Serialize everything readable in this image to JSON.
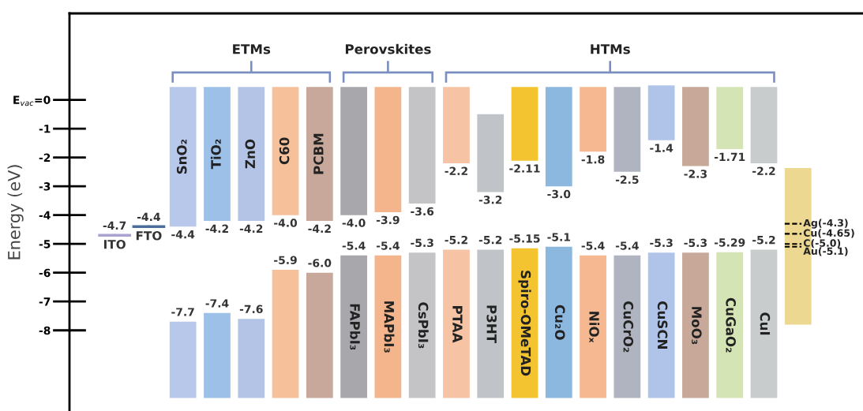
{
  "chart_data": {
    "type": "bar",
    "ylabel": "Energy (eV)",
    "categories": [
      "ITO",
      "FTO",
      "SnO₂",
      "TiO₂",
      "ZnO",
      "C60",
      "PCBM",
      "FAPbI₃",
      "MAPbI₃",
      "CsPbI₃",
      "PTAA",
      "P3HT",
      "Spiro-OMeTAD",
      "Cu₂O",
      "NiOₓ",
      "CuCrO₂",
      "CuSCN",
      "MoO₃",
      "CuGaO₂",
      "CuI",
      null
    ],
    "ylim": [
      -10.8,
      3.0
    ],
    "yticks": [
      {
        "value": 0,
        "label": "E$_{vac}$=0"
      },
      -1,
      -2,
      -3,
      -4,
      -5,
      -6,
      -7,
      -8
    ],
    "tick_labels": "y",
    "series": [
      {
        "type": "scatter",
        "colors": [
          "#a9a3d0",
          "#4a6d9a",
          null,
          null,
          null,
          null,
          null,
          null,
          null,
          null,
          null,
          null,
          null,
          null,
          null,
          null,
          null,
          null,
          null,
          null,
          null
        ],
        "values": [
          -4.7,
          -4.4,
          null,
          null,
          null,
          null,
          null,
          null,
          null,
          null,
          null,
          null,
          null,
          null,
          null,
          null,
          null,
          null,
          null,
          null,
          null
        ],
        "value_labels": [
          "-4.7",
          "-4.4",
          null,
          null,
          null,
          null,
          null,
          null,
          null,
          null,
          null,
          null,
          null,
          null,
          null,
          null,
          null,
          null,
          null,
          null,
          null
        ]
      },
      {
        "colors": [
          null,
          null,
          "#b8c8ea",
          "#9cc0e8",
          "#b4c4e6",
          "#f6c09a",
          "#c8a89a",
          "#a8a8ac",
          "#f4b48c",
          "#c4c4c6",
          "#f6c4a4",
          "#c0c4c8",
          "#f4c430",
          "#8cb8e0",
          "#f6b890",
          "#b0b4c0",
          "#b0c4ea",
          "#c8a898",
          "#d4e4b4",
          "#c8cccc",
          "#ecd890"
        ],
        "base": [
          null,
          null,
          -4.4,
          -4.2,
          -4.2,
          -4.0,
          -4.2,
          -4.0,
          -3.9,
          -3.6,
          -2.2,
          -3.2,
          -2.11,
          -3.0,
          -1.8,
          -2.5,
          -1.4,
          -2.3,
          -1.71,
          -2.2,
          -7.8
        ],
        "values": [
          null,
          null,
          4.85,
          4.65,
          4.65,
          4.45,
          4.65,
          4.45,
          4.35,
          4.05,
          2.65,
          2.7,
          2.56,
          3.45,
          2.25,
          2.95,
          1.9,
          2.75,
          2.16,
          2.65,
          5.43
        ]
      },
      {
        "colors": [
          null,
          null,
          "#b8c8ea",
          "#9cc0e8",
          "#b4c4e6",
          "#f6c09a",
          "#c8a89a",
          "#a8a8ac",
          "#f4b48c",
          "#c4c4c6",
          "#f6c4a4",
          "#c0c4c8",
          "#f4c430",
          "#8cb8e0",
          "#f6b890",
          "#b0b4c0",
          "#b0c4ea",
          "#c8a898",
          "#d4e4b4",
          "#c8cccc",
          null
        ],
        "base": [
          null,
          null,
          -7.7,
          -7.4,
          -7.6,
          -5.9,
          -6.0,
          -5.4,
          -5.4,
          -5.3,
          -5.2,
          -5.2,
          -5.15,
          -5.1,
          -5.4,
          -5.4,
          -5.3,
          -5.3,
          -5.29,
          -5.2,
          null
        ],
        "values": [
          null,
          null,
          -2.65,
          -2.95,
          -2.75,
          -4.45,
          -4.35,
          -4.95,
          -4.95,
          -5.05,
          -5.15,
          -5.15,
          -5.2,
          -5.25,
          -4.95,
          -4.95,
          -5.05,
          -5.05,
          -5.06,
          -5.15,
          null
        ]
      }
    ],
    "ref_lines": [
      {
        "axis": "y",
        "value": -4.3,
        "label": "Ag(-4.3)",
        "color": "#000000",
        "line_style": "dashed"
      },
      {
        "axis": "y",
        "value": -4.65,
        "label": "Cu(-4.65)",
        "color": "#000000",
        "line_style": "dashed"
      },
      {
        "axis": "y",
        "value": -5.0,
        "label": "C(-5.0)",
        "color": "#000000",
        "line_style": "dashed"
      },
      {
        "axis": "y",
        "value": -5.1,
        "label": "Au(-5.1)",
        "color": "#000000",
        "line_style": "dashed"
      }
    ],
    "annotations": [
      "ETMs",
      "Perovskites",
      "HTMs",
      {
        "text": "-4.4",
        "x": "SnO₂",
        "y": -4.4
      },
      {
        "text": "-4.2",
        "x": "TiO₂",
        "y": -4.2
      },
      {
        "text": "-4.2",
        "x": "ZnO",
        "y": -4.2
      },
      {
        "text": "-4.0",
        "x": "C60",
        "y": -4.0
      },
      {
        "text": "-4.2",
        "x": "PCBM",
        "y": -4.2
      },
      {
        "text": "-4.0",
        "x": "FAPbI₃",
        "y": -4.0
      },
      {
        "text": "-3.9",
        "x": "MAPbI₃",
        "y": -3.9
      },
      {
        "text": "-3.6",
        "x": "CsPbI₃",
        "y": -3.6
      },
      {
        "text": "-2.2",
        "x": "PTAA",
        "y": -2.2
      },
      {
        "text": "-3.2",
        "x": "P3HT",
        "y": -3.2
      },
      {
        "text": "-2.11",
        "x": "Spiro-OMeTAD",
        "y": -2.11
      },
      {
        "text": "-3.0",
        "x": "Cu₂O",
        "y": -3.0
      },
      {
        "text": "-1.8",
        "x": "NiOₓ",
        "y": -1.8
      },
      {
        "text": "-2.5",
        "x": "CuCrO₂",
        "y": -2.5
      },
      {
        "text": "-1.4",
        "x": "CuSCN",
        "y": -1.4
      },
      {
        "text": "-2.3",
        "x": "MoO₃",
        "y": -2.3
      },
      {
        "text": "-1.71",
        "x": "CuGaO₂",
        "y": -1.71
      },
      {
        "text": "-2.2",
        "x": "CuI",
        "y": -2.2
      },
      {
        "text": "-7.7",
        "x": "SnO₂",
        "y": -7.7
      },
      {
        "text": "-7.4",
        "x": "TiO₂",
        "y": -7.4
      },
      {
        "text": "-7.6",
        "x": "ZnO",
        "y": -7.6
      },
      {
        "text": "-5.9",
        "x": "C60",
        "y": -5.9
      },
      {
        "text": "-6.0",
        "x": "PCBM",
        "y": -6.0
      },
      {
        "text": "-5.4",
        "x": "FAPbI₃",
        "y": -5.4
      },
      {
        "text": "-5.4",
        "x": "MAPbI₃",
        "y": -5.4
      },
      {
        "text": "-5.3",
        "x": "CsPbI₃",
        "y": -5.3
      },
      {
        "text": "-5.2",
        "x": "PTAA",
        "y": -5.2
      },
      {
        "text": "-5.2",
        "x": "P3HT",
        "y": -5.2
      },
      {
        "text": "-5.15",
        "x": "Spiro-OMeTAD",
        "y": -5.15
      },
      {
        "text": "-5.1",
        "x": "Cu₂O",
        "y": -5.1
      },
      {
        "text": "-5.4",
        "x": "NiOₓ",
        "y": -5.4
      },
      {
        "text": "-5.4",
        "x": "CuCrO₂",
        "y": -5.4
      },
      {
        "text": "-5.3",
        "x": "CuSCN",
        "y": -5.3
      },
      {
        "text": "-5.3",
        "x": "MoO₃",
        "y": -5.3
      },
      {
        "text": "-5.29",
        "x": "CuGaO₂",
        "y": -5.29
      },
      {
        "text": "-5.2",
        "x": "CuI",
        "y": -5.2
      }
    ],
    "grid": false,
    "legend": false
  }
}
